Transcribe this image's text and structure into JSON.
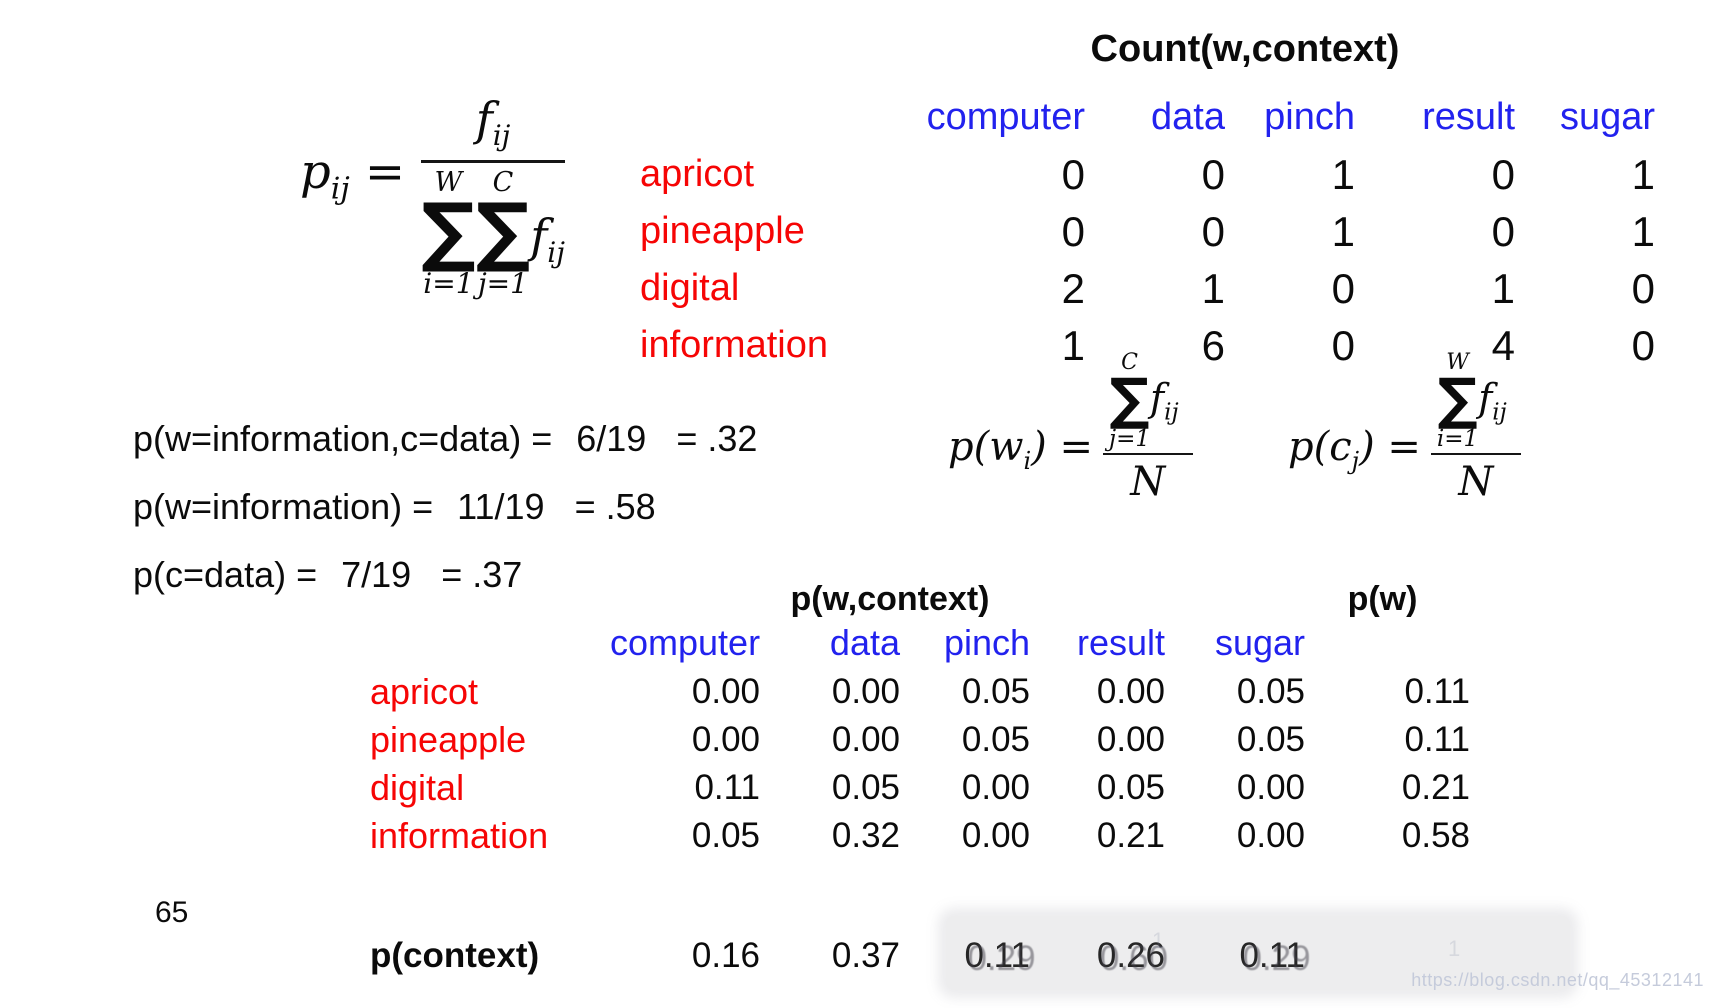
{
  "slide": {
    "page_number": "65",
    "watermark": "https://blog.csdn.net/qq_45312141",
    "artifacts": [
      {
        "text": "1"
      },
      {
        "text": "1"
      }
    ]
  },
  "colors": {
    "header_blue": "#2222ee",
    "label_red": "#f60505",
    "text_black": "#0b0b0b",
    "watermark_gray": "#c5cbdb"
  },
  "formula_pij": {
    "lhs_base": "p",
    "lhs_sub": "ij",
    "equals": "=",
    "num_base": "f",
    "num_sub": "ij",
    "sum_w_upper": "W",
    "sum_w_symbol": "∑",
    "sum_w_lower": "i=1",
    "sum_c_upper": "C",
    "sum_c_symbol": "∑",
    "sum_c_lower": "j=1",
    "den_base": "f",
    "den_sub": "ij"
  },
  "count_table": {
    "title": "Count(w,context)",
    "columns": [
      "computer",
      "data",
      "pinch",
      "result",
      "sugar"
    ],
    "rows": [
      {
        "label": "apricot",
        "values": [
          "0",
          "0",
          "1",
          "0",
          "1"
        ]
      },
      {
        "label": "pineapple",
        "values": [
          "0",
          "0",
          "1",
          "0",
          "1"
        ]
      },
      {
        "label": "digital",
        "values": [
          "2",
          "1",
          "0",
          "1",
          "0"
        ]
      },
      {
        "label": "information",
        "values": [
          "1",
          "6",
          "0",
          "4",
          "0"
        ]
      }
    ]
  },
  "joint_prob_lines": [
    {
      "lhs": "p(w=information,c=data) =",
      "fraction": "6/19",
      "result": "= .32"
    },
    {
      "lhs": "p(w=information) =",
      "fraction": "11/19",
      "result": "= .58"
    },
    {
      "lhs": "p(c=data) =",
      "fraction": "7/19",
      "result": "= .37"
    }
  ],
  "formula_pw": {
    "lhs_open": "p(w",
    "lhs_sub": "i",
    "lhs_close": ") =",
    "sum_upper": "C",
    "sum_symbol": "∑",
    "sum_lower": "j=1",
    "f_base": "f",
    "f_sub": "ij",
    "denominator": "N"
  },
  "formula_pc": {
    "lhs_open": "p(c",
    "lhs_sub": "j",
    "lhs_close": ") =",
    "sum_upper": "W",
    "sum_symbol": "∑",
    "sum_lower": "i=1",
    "f_base": "f",
    "f_sub": "ij",
    "denominator": "N"
  },
  "prob_table": {
    "title": "p(w,context)",
    "pw_title": "p(w)",
    "columns": [
      "computer",
      "data",
      "pinch",
      "result",
      "sugar"
    ],
    "rows": [
      {
        "label": "apricot",
        "values": [
          "0.00",
          "0.00",
          "0.05",
          "0.00",
          "0.05"
        ],
        "pw": "0.11"
      },
      {
        "label": "pineapple",
        "values": [
          "0.00",
          "0.00",
          "0.05",
          "0.00",
          "0.05"
        ],
        "pw": "0.11"
      },
      {
        "label": "digital",
        "values": [
          "0.11",
          "0.05",
          "0.00",
          "0.05",
          "0.00"
        ],
        "pw": "0.21"
      },
      {
        "label": "information",
        "values": [
          "0.05",
          "0.32",
          "0.00",
          "0.21",
          "0.00"
        ],
        "pw": "0.58"
      }
    ],
    "context_row": {
      "label": "p(context)",
      "cells": [
        {
          "text": "0.16",
          "ghost": ""
        },
        {
          "text": "0.37",
          "ghost": ""
        },
        {
          "text": "0.11",
          "ghost": "0.29"
        },
        {
          "text": "0.26",
          "ghost": "0.60"
        },
        {
          "text": "0.11",
          "ghost": "0.29"
        }
      ]
    }
  }
}
